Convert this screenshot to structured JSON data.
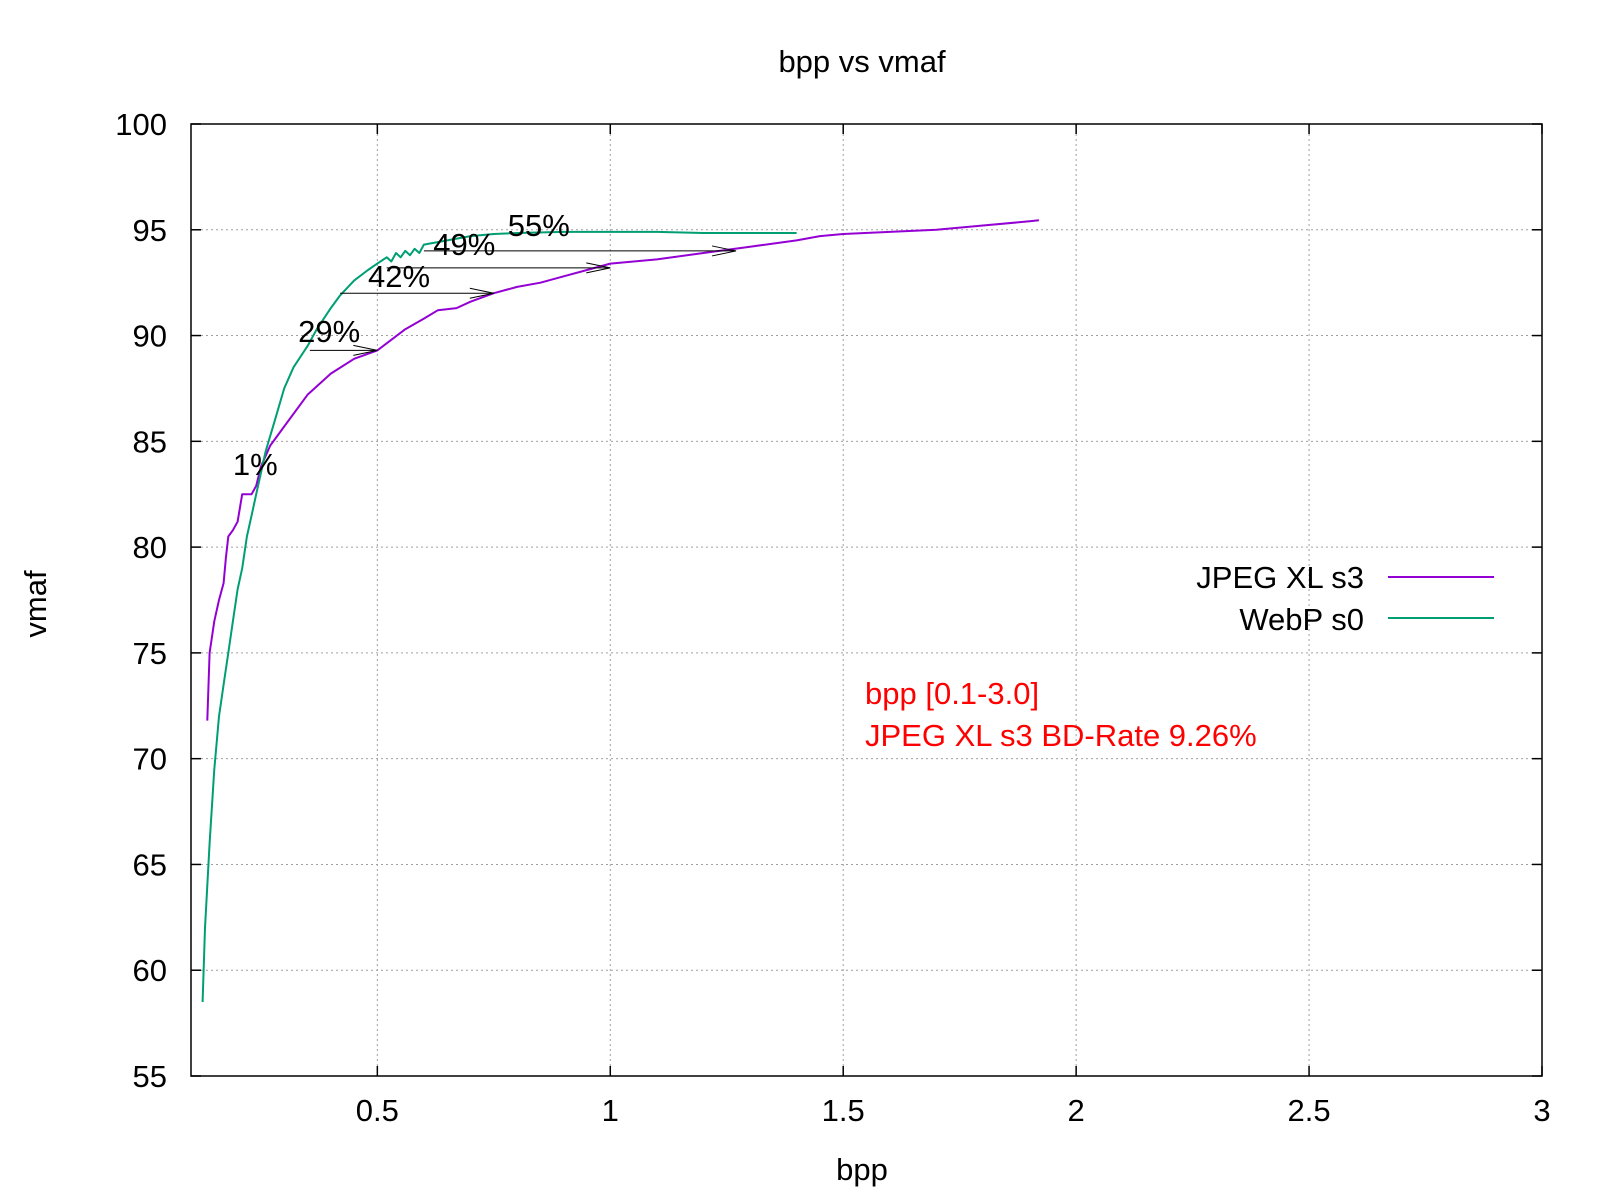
{
  "chart_data": {
    "type": "line",
    "title": "bpp vs vmaf",
    "xlabel": "bpp",
    "ylabel": "vmaf",
    "xlim": [
      0.1,
      3
    ],
    "ylim": [
      55,
      100
    ],
    "xticks": [
      0.5,
      1,
      1.5,
      2,
      2.5,
      3
    ],
    "xtick_labels": [
      "0.5",
      "1",
      "1.5",
      "2",
      "2.5",
      "3"
    ],
    "yticks": [
      55,
      60,
      65,
      70,
      75,
      80,
      85,
      90,
      95,
      100
    ],
    "ytick_labels": [
      "55",
      "60",
      "65",
      "70",
      "75",
      "80",
      "85",
      "90",
      "95",
      "100"
    ],
    "grid": true,
    "legend_position": "right",
    "series": [
      {
        "name": "JPEG XL s3",
        "color": "#9400d3",
        "x": [
          0.135,
          0.14,
          0.15,
          0.16,
          0.17,
          0.175,
          0.18,
          0.19,
          0.2,
          0.21,
          0.22,
          0.23,
          0.24,
          0.25,
          0.27,
          0.3,
          0.35,
          0.4,
          0.45,
          0.5,
          0.53,
          0.56,
          0.6,
          0.63,
          0.67,
          0.7,
          0.75,
          0.8,
          0.85,
          0.9,
          0.95,
          1.0,
          1.05,
          1.1,
          1.2,
          1.3,
          1.4,
          1.45,
          1.5,
          1.6,
          1.7,
          1.8,
          1.9,
          1.92
        ],
        "y": [
          71.8,
          75.0,
          76.5,
          77.5,
          78.3,
          79.5,
          80.5,
          80.8,
          81.2,
          82.5,
          82.5,
          82.5,
          82.9,
          83.8,
          84.8,
          85.7,
          87.2,
          88.2,
          88.9,
          89.3,
          89.8,
          90.3,
          90.8,
          91.2,
          91.3,
          91.6,
          92.0,
          92.3,
          92.5,
          92.8,
          93.1,
          93.4,
          93.5,
          93.6,
          93.9,
          94.2,
          94.5,
          94.7,
          94.8,
          94.9,
          95.0,
          95.2,
          95.4,
          95.45
        ]
      },
      {
        "name": "WebP s0",
        "color": "#009e73",
        "x": [
          0.125,
          0.13,
          0.14,
          0.15,
          0.16,
          0.17,
          0.18,
          0.19,
          0.2,
          0.21,
          0.22,
          0.23,
          0.24,
          0.25,
          0.26,
          0.28,
          0.3,
          0.32,
          0.35,
          0.37,
          0.4,
          0.42,
          0.45,
          0.48,
          0.5,
          0.52,
          0.53,
          0.54,
          0.55,
          0.56,
          0.57,
          0.58,
          0.59,
          0.6,
          0.65,
          0.7,
          0.75,
          0.8,
          0.9,
          1.0,
          1.1,
          1.2,
          1.3,
          1.4
        ],
        "y": [
          58.5,
          62.0,
          66.0,
          69.5,
          72.0,
          73.5,
          75.0,
          76.5,
          78.0,
          79.0,
          80.5,
          81.5,
          82.5,
          83.5,
          84.5,
          86.0,
          87.5,
          88.5,
          89.5,
          90.3,
          91.3,
          91.9,
          92.6,
          93.1,
          93.4,
          93.7,
          93.5,
          93.9,
          93.7,
          94.0,
          93.8,
          94.1,
          93.9,
          94.3,
          94.5,
          94.7,
          94.8,
          94.85,
          94.9,
          94.9,
          94.9,
          94.85,
          94.85,
          94.85
        ]
      }
    ],
    "annotations": [
      {
        "label": "1%",
        "x_text": 0.19,
        "y_text": 83.4,
        "y_line": 82.8,
        "x_from": 0.245,
        "x_to": 0.245
      },
      {
        "label": "29%",
        "x_text": 0.33,
        "y_text": 89.7,
        "y_line": 89.3,
        "x_from": 0.355,
        "x_to": 0.5
      },
      {
        "label": "42%",
        "x_text": 0.48,
        "y_text": 92.3,
        "y_line": 92.0,
        "x_from": 0.42,
        "x_to": 0.75
      },
      {
        "label": "49%",
        "x_text": 0.62,
        "y_text": 93.8,
        "y_line": 93.2,
        "x_from": 0.52,
        "x_to": 1.0
      },
      {
        "label": "55%",
        "x_text": 0.78,
        "y_text": 94.7,
        "y_line": 94.0,
        "x_from": 0.6,
        "x_to": 1.27
      }
    ],
    "bd_text": {
      "line1": "bpp [0.1-3.0]",
      "line2": "JPEG XL s3 BD-Rate 9.26%",
      "color": "#ff0000"
    }
  }
}
